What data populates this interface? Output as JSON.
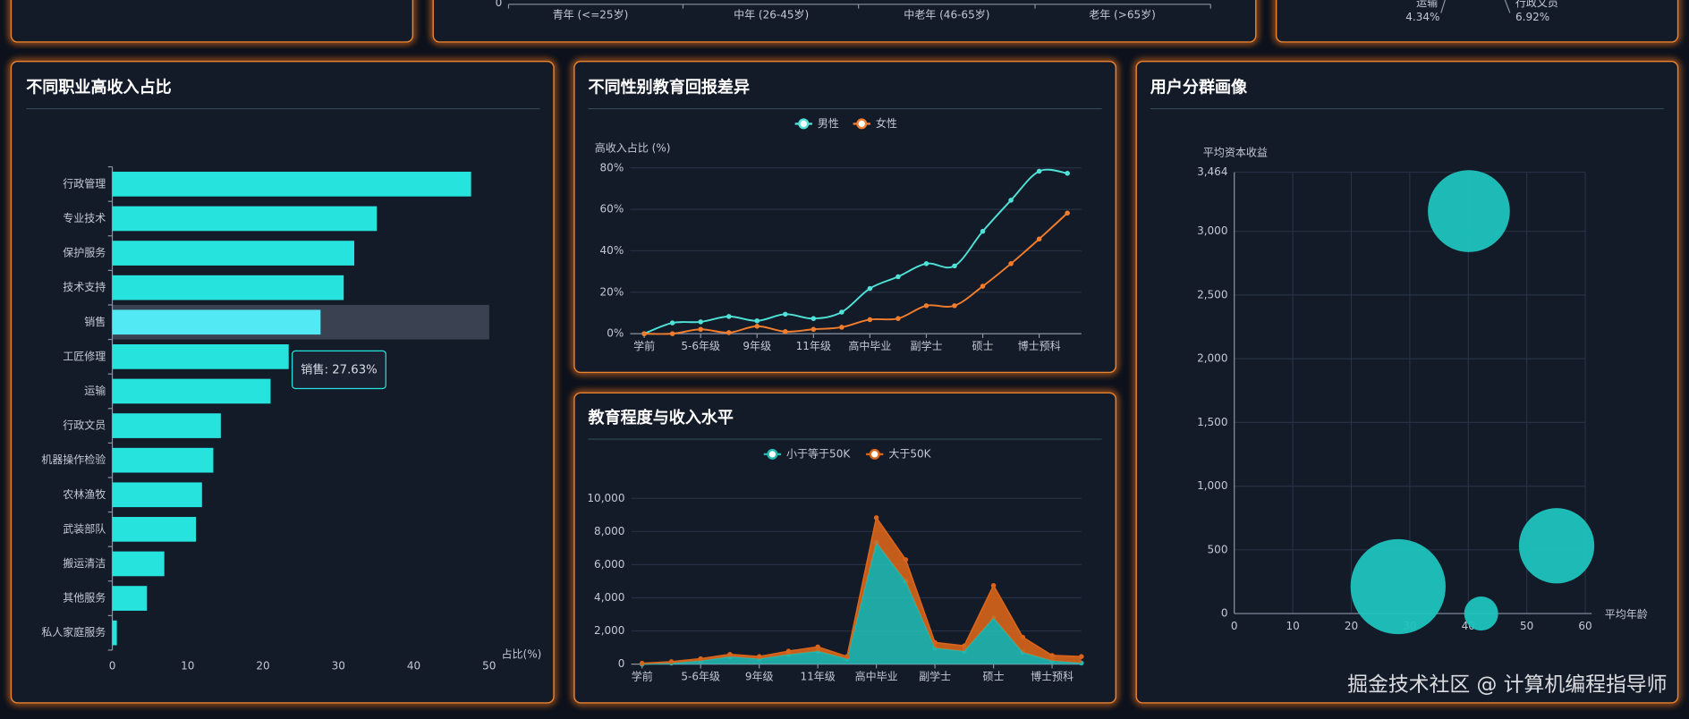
{
  "top_panels": {
    "age_groups": [
      "青年 (<=25岁)",
      "中年 (26-45岁)",
      "中老年 (46-65岁)",
      "老年 (>65岁)"
    ],
    "age_axis_tick": "0",
    "pie_labels": [
      {
        "name": "运输",
        "percent": "4.34%"
      },
      {
        "name": "行政文员",
        "percent": "6.92%"
      }
    ]
  },
  "chart_data": [
    {
      "type": "bar",
      "orientation": "horizontal",
      "title": "不同职业高收入占比",
      "x_label": "占比(%)",
      "categories": [
        "行政管理",
        "专业技术",
        "保护服务",
        "技术支持",
        "销售",
        "工匠修理",
        "运输",
        "行政文员",
        "机器操作检验",
        "农林渔牧",
        "武装部队",
        "搬运清洁",
        "其他服务",
        "私人家庭服务"
      ],
      "values": [
        47.6,
        35.1,
        32.1,
        30.7,
        27.63,
        23.4,
        21.0,
        14.4,
        13.4,
        11.9,
        11.1,
        6.9,
        4.6,
        0.6
      ],
      "color": "#27e3de",
      "hover_color": "#52e8f4",
      "xlim": [
        0,
        50
      ],
      "xticks": [
        0,
        10,
        20,
        30,
        40,
        50
      ],
      "tooltip": "销售: 27.63%"
    },
    {
      "type": "line",
      "title": "不同性别教育回报差异",
      "y_label": "高收入占比 (%)",
      "categories": [
        "学前",
        null,
        "5-6年级",
        null,
        "9年级",
        null,
        "11年级",
        null,
        "高中毕业",
        null,
        "副学士",
        null,
        "硕士",
        null,
        "博士预科",
        null
      ],
      "series": [
        {
          "name": "男性",
          "color": "#4fe3d8",
          "values": [
            0,
            5.2,
            5.7,
            8.3,
            6.2,
            9.4,
            7.3,
            10.4,
            21.8,
            27.5,
            33.8,
            32.7,
            49.4,
            64.4,
            78.4,
            77.4
          ]
        },
        {
          "name": "女性",
          "color": "#f27d2c",
          "values": [
            0,
            0,
            2.1,
            0.5,
            3.6,
            1,
            2.1,
            3.1,
            6.8,
            7.3,
            13.5,
            13.5,
            22.9,
            33.8,
            45.7,
            58.2
          ]
        }
      ],
      "ylim": [
        0,
        80
      ],
      "yticks": [
        {
          "value": 0,
          "label": "0%"
        },
        {
          "value": 20,
          "label": "20%"
        },
        {
          "value": 40,
          "label": "40%"
        },
        {
          "value": 60,
          "label": "60%"
        },
        {
          "value": 80,
          "label": "80%"
        }
      ],
      "grid": true,
      "smooth": true
    },
    {
      "type": "area",
      "stacked": true,
      "title": "教育程度与收入水平",
      "categories": [
        "学前",
        null,
        "5-6年级",
        null,
        "9年级",
        null,
        "11年级",
        null,
        "高中毕业",
        null,
        "副学士",
        null,
        "硕士",
        null,
        "博士预科",
        null
      ],
      "series": [
        {
          "name": "小于等于50K",
          "color": "#22b9b1",
          "values": [
            0,
            65,
            200,
            450,
            320,
            580,
            780,
            320,
            7340,
            5000,
            970,
            780,
            2790,
            710,
            200,
            65
          ]
        },
        {
          "name": "大于50K",
          "color": "#d8651a",
          "values": [
            50,
            80,
            125,
            135,
            135,
            200,
            260,
            135,
            1490,
            1300,
            330,
            320,
            1950,
            910,
            320,
            390
          ]
        }
      ],
      "ylim": [
        0,
        10000
      ],
      "yticks": [
        0,
        {
          "value": 2000,
          "label": "2,000"
        },
        {
          "value": 4000,
          "label": "4,000"
        },
        {
          "value": 6000,
          "label": "6,000"
        },
        {
          "value": 8000,
          "label": "8,000"
        },
        {
          "value": 10000,
          "label": "10,000"
        }
      ],
      "grid": true
    },
    {
      "type": "scatter",
      "title": "用户分群画像",
      "x_label": "平均年龄",
      "y_label": "平均资本收益",
      "x": [
        28.0,
        40.1,
        55.1,
        42.2
      ],
      "values": [
        211,
        3159,
        532,
        0
      ],
      "sizes": [
        7800,
        5800,
        4900,
        1000
      ],
      "color": "#1fc4be",
      "xlim": [
        0,
        60
      ],
      "xticks": [
        0,
        10,
        20,
        30,
        40,
        50,
        60
      ],
      "ylim": [
        0,
        3464
      ],
      "yticks": [
        0,
        500,
        {
          "value": 1000,
          "label": "1,000"
        },
        {
          "value": 1500,
          "label": "1,500"
        },
        {
          "value": 2000,
          "label": "2,000"
        },
        {
          "value": 2500,
          "label": "2,500"
        },
        {
          "value": 3000,
          "label": "3,000"
        },
        {
          "value": 3464,
          "label": "3,464"
        }
      ],
      "grid": true
    }
  ],
  "watermark": "掘金技术社区 @ 计算机编程指导师"
}
